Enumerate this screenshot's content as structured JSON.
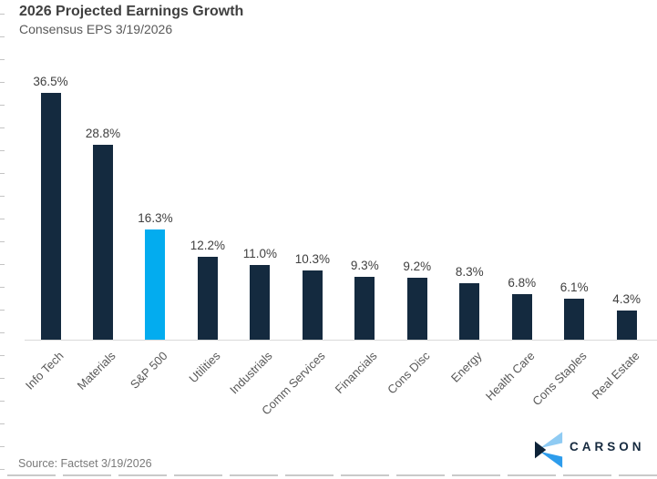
{
  "header": {
    "title": "2026 Projected Earnings Growth",
    "subtitle": "Consensus EPS 3/19/2026"
  },
  "footer": {
    "source": "Source: Factset 3/19/2026",
    "brand": "CARSON"
  },
  "colors": {
    "bar": "#142a3f",
    "highlight": "#03acef",
    "title": "#404040",
    "subtitle": "#595959",
    "value_label": "#3f3f3f",
    "axis_label": "#595959",
    "baseline": "#d9d9d9",
    "tick": "#c4c4c4",
    "source": "#7a7a7a",
    "logo_navy": "#0e2338",
    "logo_blue": "#2d9cec",
    "logo_light_blue": "#8fcbf3",
    "logo_text": "#15293e"
  },
  "chart_data": {
    "type": "bar",
    "title": "2026 Projected Earnings Growth",
    "subtitle": "Consensus EPS 3/19/2026",
    "categories": [
      "Info Tech",
      "Materials",
      "S&P 500",
      "Utilities",
      "Industrials",
      "Comm Services",
      "Financials",
      "Cons Disc",
      "Energy",
      "Health Care",
      "Cons Staples",
      "Real Estate"
    ],
    "values": [
      36.5,
      28.8,
      16.3,
      12.2,
      11.0,
      10.3,
      9.3,
      9.2,
      8.3,
      6.8,
      6.1,
      4.3
    ],
    "value_labels": [
      "36.5%",
      "28.8%",
      "16.3%",
      "12.2%",
      "11.0%",
      "10.3%",
      "9.3%",
      "9.2%",
      "8.3%",
      "6.8%",
      "6.1%",
      "4.3%"
    ],
    "highlight_category": "S&P 500",
    "xlabel": "",
    "ylabel": "",
    "ylim": [
      0,
      40
    ],
    "gridlines": false,
    "legend": "none",
    "source": "Source: Factset 3/19/2026"
  }
}
